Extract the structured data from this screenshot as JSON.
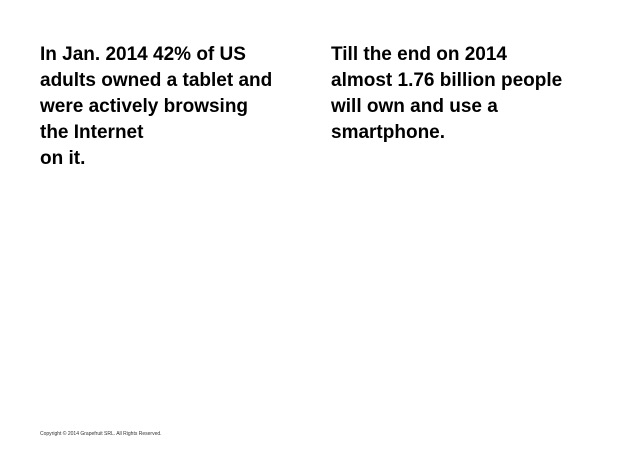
{
  "slide": {
    "left_text": "In Jan. 2014 42% of US\nadults owned a tablet and\nwere actively browsing\nthe Internet\n on it.",
    "right_text": "Till the end on 2014\nalmost 1.76 billion people\nwill own and use a\nsmartphone.",
    "footer": "Copyright © 2014 Grapefruit SRL. All Rights Reserved."
  }
}
